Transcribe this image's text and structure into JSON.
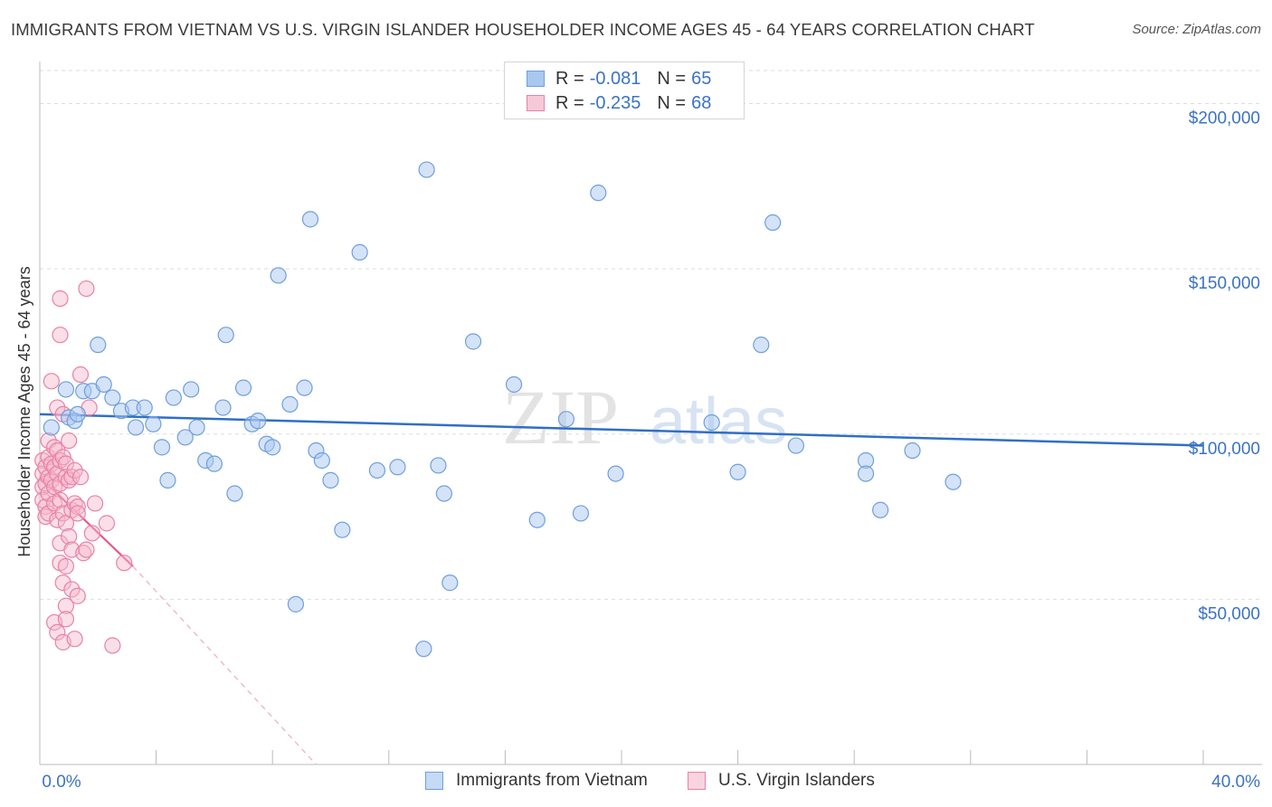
{
  "title": "IMMIGRANTS FROM VIETNAM VS U.S. VIRGIN ISLANDER HOUSEHOLDER INCOME AGES 45 - 64 YEARS CORRELATION CHART",
  "source": "Source: ZipAtlas.com",
  "watermark": {
    "zip": "ZIP",
    "atlas": "atlas"
  },
  "legend": {
    "r_label": "R =",
    "n_label": "N =",
    "rows": [
      {
        "r": "-0.081",
        "n": "65"
      },
      {
        "r": "-0.235",
        "n": "68"
      }
    ]
  },
  "colors": {
    "blue_fill": "#a9c8ef",
    "blue_stroke": "#6f9fde",
    "blue_line": "#2f6fc6",
    "pink_fill": "#f6b8cd",
    "pink_stroke": "#e882a6",
    "pink_line": "#e8578a",
    "tick_text": "#3b73c4",
    "grid": "#dddddd"
  },
  "chart_data": {
    "type": "scatter",
    "title": "IMMIGRANTS FROM VIETNAM VS U.S. VIRGIN ISLANDER HOUSEHOLDER INCOME AGES 45 - 64 YEARS CORRELATION CHART",
    "xlabel": "",
    "ylabel": "Householder Income Ages 45 - 64 years",
    "xlim": [
      0,
      40
    ],
    "ylim": [
      0,
      210000
    ],
    "x_tick_labels": [
      "0.0%",
      "40.0%"
    ],
    "y_ticks": [
      {
        "value": 50000,
        "label": "$50,000"
      },
      {
        "value": 100000,
        "label": "$100,000"
      },
      {
        "value": 150000,
        "label": "$150,000"
      },
      {
        "value": 200000,
        "label": "$200,000"
      }
    ],
    "grid": "horizontal dashed",
    "series": [
      {
        "name": "Immigrants from Vietnam",
        "color": "blue",
        "trend": {
          "x": [
            0,
            40
          ],
          "y": [
            106000,
            96500
          ]
        },
        "points": [
          [
            0.4,
            102000
          ],
          [
            0.9,
            113500
          ],
          [
            1.0,
            105000
          ],
          [
            1.2,
            104000
          ],
          [
            1.5,
            113000
          ],
          [
            1.8,
            113000
          ],
          [
            2.0,
            127000
          ],
          [
            2.2,
            115000
          ],
          [
            2.5,
            111000
          ],
          [
            2.8,
            107000
          ],
          [
            3.2,
            108000
          ],
          [
            3.3,
            102000
          ],
          [
            3.6,
            108000
          ],
          [
            3.9,
            103000
          ],
          [
            4.2,
            96000
          ],
          [
            4.4,
            86000
          ],
          [
            4.6,
            111000
          ],
          [
            5.0,
            99000
          ],
          [
            5.2,
            113500
          ],
          [
            5.4,
            102000
          ],
          [
            5.7,
            92000
          ],
          [
            6.0,
            91000
          ],
          [
            6.3,
            108000
          ],
          [
            6.4,
            130000
          ],
          [
            6.7,
            82000
          ],
          [
            7.0,
            114000
          ],
          [
            7.3,
            103000
          ],
          [
            7.5,
            104000
          ],
          [
            7.8,
            97000
          ],
          [
            8.0,
            96000
          ],
          [
            8.2,
            148000
          ],
          [
            8.6,
            109000
          ],
          [
            8.8,
            48500
          ],
          [
            9.1,
            114000
          ],
          [
            9.3,
            165000
          ],
          [
            9.5,
            95000
          ],
          [
            9.7,
            92000
          ],
          [
            10.0,
            86000
          ],
          [
            10.4,
            71000
          ],
          [
            11.0,
            155000
          ],
          [
            11.6,
            89000
          ],
          [
            12.3,
            90000
          ],
          [
            13.2,
            35000
          ],
          [
            13.3,
            180000
          ],
          [
            13.7,
            90500
          ],
          [
            13.9,
            82000
          ],
          [
            14.1,
            55000
          ],
          [
            14.9,
            128000
          ],
          [
            16.3,
            115000
          ],
          [
            17.1,
            74000
          ],
          [
            18.1,
            104500
          ],
          [
            18.6,
            76000
          ],
          [
            19.2,
            173000
          ],
          [
            19.8,
            88000
          ],
          [
            23.1,
            103500
          ],
          [
            24.0,
            88500
          ],
          [
            24.8,
            127000
          ],
          [
            25.2,
            164000
          ],
          [
            26.0,
            96500
          ],
          [
            28.4,
            92000
          ],
          [
            28.4,
            88000
          ],
          [
            28.9,
            77000
          ],
          [
            30.0,
            95000
          ],
          [
            31.4,
            85500
          ],
          [
            1.3,
            106000
          ]
        ]
      },
      {
        "name": "U.S. Virgin Islanders",
        "color": "pink",
        "trend": {
          "x": [
            0.0,
            3.2
          ],
          "y": [
            87000,
            60000
          ]
        },
        "trend_dashed": {
          "x": [
            3.2,
            9.5
          ],
          "y": [
            60000,
            0
          ]
        },
        "points": [
          [
            0.1,
            92000
          ],
          [
            0.1,
            88000
          ],
          [
            0.1,
            84000
          ],
          [
            0.1,
            80000
          ],
          [
            0.2,
            90000
          ],
          [
            0.2,
            85000
          ],
          [
            0.2,
            78000
          ],
          [
            0.2,
            75000
          ],
          [
            0.3,
            98000
          ],
          [
            0.3,
            93000
          ],
          [
            0.3,
            87000
          ],
          [
            0.3,
            82000
          ],
          [
            0.3,
            76000
          ],
          [
            0.4,
            116000
          ],
          [
            0.4,
            91000
          ],
          [
            0.4,
            86000
          ],
          [
            0.5,
            96000
          ],
          [
            0.5,
            90000
          ],
          [
            0.5,
            84000
          ],
          [
            0.5,
            79000
          ],
          [
            0.5,
            43000
          ],
          [
            0.6,
            108000
          ],
          [
            0.6,
            95000
          ],
          [
            0.6,
            88000
          ],
          [
            0.6,
            74000
          ],
          [
            0.6,
            40000
          ],
          [
            0.7,
            141000
          ],
          [
            0.7,
            130000
          ],
          [
            0.7,
            92000
          ],
          [
            0.7,
            85000
          ],
          [
            0.7,
            80000
          ],
          [
            0.7,
            67000
          ],
          [
            0.7,
            61000
          ],
          [
            0.8,
            106000
          ],
          [
            0.8,
            93000
          ],
          [
            0.8,
            76000
          ],
          [
            0.8,
            55000
          ],
          [
            0.8,
            37000
          ],
          [
            0.9,
            91000
          ],
          [
            0.9,
            87000
          ],
          [
            0.9,
            73000
          ],
          [
            0.9,
            60000
          ],
          [
            0.9,
            48000
          ],
          [
            0.9,
            44000
          ],
          [
            1.0,
            98000
          ],
          [
            1.0,
            86000
          ],
          [
            1.0,
            69000
          ],
          [
            1.1,
            87000
          ],
          [
            1.1,
            77000
          ],
          [
            1.1,
            65000
          ],
          [
            1.1,
            53000
          ],
          [
            1.2,
            89000
          ],
          [
            1.2,
            79000
          ],
          [
            1.2,
            38000
          ],
          [
            1.3,
            78000
          ],
          [
            1.3,
            76000
          ],
          [
            1.3,
            51000
          ],
          [
            1.4,
            118000
          ],
          [
            1.4,
            87000
          ],
          [
            1.5,
            64000
          ],
          [
            1.6,
            144000
          ],
          [
            1.6,
            65000
          ],
          [
            1.7,
            108000
          ],
          [
            1.8,
            70000
          ],
          [
            1.9,
            79000
          ],
          [
            2.3,
            73000
          ],
          [
            2.5,
            36000
          ],
          [
            2.9,
            61000
          ]
        ]
      }
    ]
  }
}
